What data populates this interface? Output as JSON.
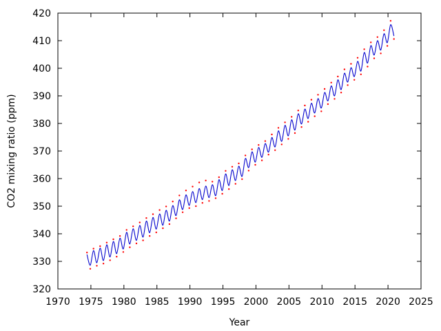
{
  "chart_data": {
    "type": "line",
    "title": "",
    "xlabel": "Year",
    "ylabel": "CO2 mixing ratio (ppm)",
    "xlim": [
      1970,
      2025
    ],
    "ylim": [
      320,
      420
    ],
    "xticks": [
      1970,
      1975,
      1980,
      1985,
      1990,
      1995,
      2000,
      2005,
      2010,
      2015,
      2020,
      2025
    ],
    "yticks": [
      320,
      330,
      340,
      350,
      360,
      370,
      380,
      390,
      400,
      410,
      420
    ],
    "grid": false,
    "legend": "none",
    "series": [
      {
        "style": "line",
        "color": "#0000cc",
        "x": [
          1974.4,
          1974.9,
          1975.4,
          1975.9,
          1976.4,
          1976.9,
          1977.4,
          1977.9,
          1978.4,
          1978.9,
          1979.4,
          1979.9,
          1980.4,
          1980.9,
          1981.4,
          1981.9,
          1982.4,
          1982.9,
          1983.4,
          1983.9,
          1984.4,
          1984.9,
          1985.4,
          1985.9,
          1986.4,
          1986.9,
          1987.4,
          1987.9,
          1988.4,
          1988.9,
          1989.4,
          1989.9,
          1990.4,
          1990.9,
          1991.4,
          1991.9,
          1992.4,
          1992.9,
          1993.4,
          1993.9,
          1994.4,
          1994.9,
          1995.4,
          1995.9,
          1996.4,
          1996.9,
          1997.4,
          1997.9,
          1998.4,
          1998.9,
          1999.4,
          1999.9,
          2000.4,
          2000.9,
          2001.4,
          2001.9,
          2002.4,
          2002.9,
          2003.4,
          2003.9,
          2004.4,
          2004.9,
          2005.4,
          2005.9,
          2006.4,
          2006.9,
          2007.4,
          2007.9,
          2008.4,
          2008.9,
          2009.4,
          2009.9,
          2010.4,
          2010.9,
          2011.4,
          2011.9,
          2012.4,
          2012.9,
          2013.4,
          2013.9,
          2014.4,
          2014.9,
          2015.4,
          2015.9,
          2016.4,
          2016.9,
          2017.4,
          2017.9,
          2018.4,
          2018.9,
          2019.4,
          2019.9,
          2020.4,
          2020.9
        ],
        "values": [
          332.5,
          328.6,
          333.9,
          329.5,
          334.8,
          330.3,
          336.0,
          331.6,
          337.2,
          332.8,
          338.4,
          334.5,
          340.5,
          336.3,
          341.8,
          337.6,
          343.0,
          338.8,
          344.6,
          340.4,
          345.9,
          341.7,
          347.2,
          343.1,
          348.5,
          344.6,
          350.2,
          346.6,
          352.3,
          348.8,
          354.1,
          350.3,
          355.3,
          351.3,
          356.4,
          352.4,
          357.3,
          353.1,
          357.8,
          353.8,
          359.6,
          355.7,
          361.7,
          357.5,
          363.2,
          359.3,
          364.5,
          360.8,
          367.3,
          364.0,
          369.7,
          366.0,
          371.3,
          367.7,
          372.7,
          369.6,
          374.9,
          371.5,
          377.3,
          373.5,
          379.3,
          375.5,
          381.3,
          377.6,
          383.5,
          379.8,
          385.2,
          381.8,
          387.3,
          383.8,
          389.0,
          385.6,
          391.2,
          388.2,
          393.6,
          390.0,
          395.8,
          392.3,
          398.2,
          395.0,
          400.2,
          397.0,
          402.5,
          399.0,
          405.7,
          401.9,
          408.2,
          404.8,
          410.0,
          406.6,
          412.5,
          409.3,
          415.8,
          411.7
        ]
      },
      {
        "style": "points",
        "color": "#ff0000",
        "x": [
          1974.4,
          1974.9,
          1975.4,
          1975.9,
          1976.4,
          1976.9,
          1977.4,
          1977.9,
          1978.4,
          1978.9,
          1979.4,
          1979.9,
          1980.4,
          1980.9,
          1981.4,
          1981.9,
          1982.4,
          1982.9,
          1983.4,
          1983.9,
          1984.4,
          1984.9,
          1985.4,
          1985.9,
          1986.4,
          1986.9,
          1987.4,
          1987.9,
          1988.4,
          1988.9,
          1989.4,
          1989.9,
          1990.4,
          1990.9,
          1991.4,
          1991.9,
          1992.4,
          1992.9,
          1993.4,
          1993.9,
          1994.4,
          1994.9,
          1995.4,
          1995.9,
          1996.4,
          1996.9,
          1997.4,
          1997.9,
          1998.4,
          1998.9,
          1999.4,
          1999.9,
          2000.4,
          2000.9,
          2001.4,
          2001.9,
          2002.4,
          2002.9,
          2003.4,
          2003.9,
          2004.4,
          2004.9,
          2005.4,
          2005.9,
          2006.4,
          2006.9,
          2007.4,
          2007.9,
          2008.4,
          2008.9,
          2009.4,
          2009.9,
          2010.4,
          2010.9,
          2011.4,
          2011.9,
          2012.4,
          2012.9,
          2013.4,
          2013.9,
          2014.4,
          2014.9,
          2015.4,
          2015.9,
          2016.4,
          2016.9,
          2017.4,
          2017.9,
          2018.4,
          2018.9,
          2019.4,
          2019.9,
          2020.4,
          2020.9
        ],
        "values": [
          333.2,
          327.3,
          334.6,
          328.4,
          335.5,
          329.2,
          336.8,
          330.4,
          338.0,
          331.7,
          339.2,
          333.4,
          341.4,
          335.1,
          342.7,
          336.5,
          344.1,
          337.6,
          345.7,
          339.2,
          347.1,
          340.5,
          348.6,
          342.0,
          349.9,
          343.5,
          351.7,
          345.6,
          353.9,
          347.8,
          355.7,
          349.3,
          357.1,
          350.0,
          358.6,
          351.2,
          359.3,
          351.9,
          358.9,
          352.9,
          360.5,
          354.5,
          362.8,
          356.2,
          364.3,
          358.1,
          365.5,
          359.8,
          368.4,
          362.9,
          370.6,
          365.0,
          372.2,
          366.6,
          373.6,
          368.7,
          376.0,
          370.3,
          378.4,
          372.4,
          380.4,
          374.4,
          382.4,
          376.5,
          384.7,
          378.7,
          386.5,
          380.6,
          388.6,
          382.6,
          390.4,
          384.4,
          392.5,
          387.0,
          394.8,
          388.9,
          397.0,
          391.2,
          399.6,
          393.9,
          401.6,
          395.8,
          403.8,
          397.8,
          406.9,
          400.6,
          409.4,
          403.6,
          411.3,
          405.4,
          413.8,
          408.1,
          417.2,
          410.6
        ]
      }
    ]
  }
}
